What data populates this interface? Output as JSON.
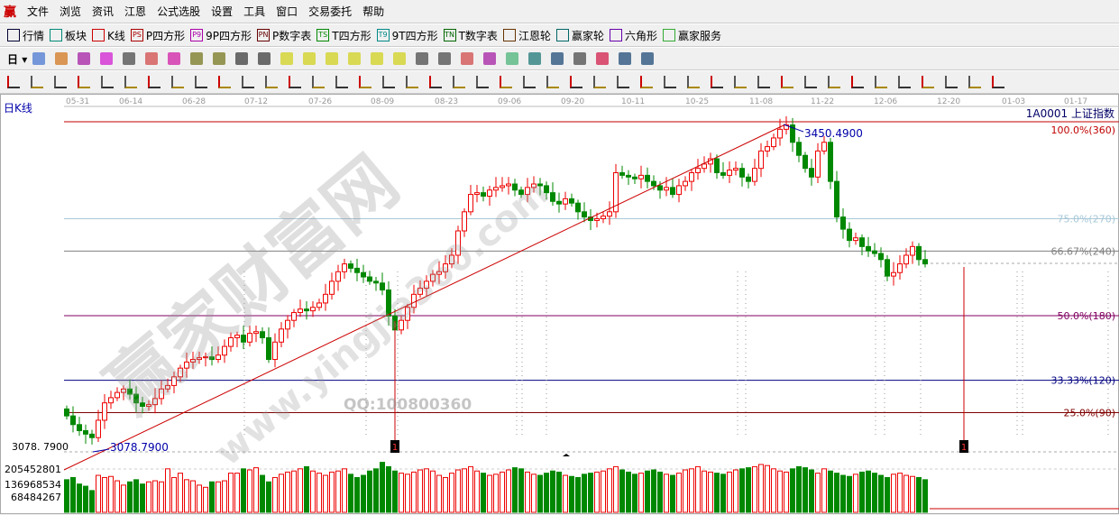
{
  "menu": {
    "logo": "赢",
    "items": [
      "文件",
      "浏览",
      "资讯",
      "江恩",
      "公式选股",
      "设置",
      "工具",
      "窗口",
      "交易委托",
      "帮助"
    ]
  },
  "toolbar1": [
    {
      "icon": "grid-icon",
      "label": "行情",
      "c": "#003"
    },
    {
      "icon": "blocks-icon",
      "label": "板块",
      "c": "#087"
    },
    {
      "icon": "kline-icon",
      "label": "K线",
      "c": "#c00"
    },
    {
      "icon": "ps-icon",
      "badge": "PS",
      "label": "P四方形",
      "c": "#a00"
    },
    {
      "icon": "p9-icon",
      "badge": "P9",
      "label": "9P四方形",
      "c": "#a0a"
    },
    {
      "icon": "pn-icon",
      "badge": "PN",
      "label": "P数字表",
      "c": "#600"
    },
    {
      "icon": "ts-icon",
      "badge": "TS",
      "label": "T四方形",
      "c": "#080"
    },
    {
      "icon": "t9-icon",
      "badge": "T9",
      "label": "9T四方形",
      "c": "#088"
    },
    {
      "icon": "tn-icon",
      "badge": "TN",
      "label": "T数字表",
      "c": "#060"
    },
    {
      "icon": "gann-wheel-icon",
      "label": "江恩轮",
      "c": "#630"
    },
    {
      "icon": "winner-wheel-icon",
      "label": "赢家轮",
      "c": "#066"
    },
    {
      "icon": "hexagon-icon",
      "label": "六角形",
      "c": "#60a"
    },
    {
      "icon": "dollar-icon",
      "label": "赢家服务",
      "c": "#3a3"
    }
  ],
  "toolbar2": {
    "period": "日",
    "icons": [
      "chart-type-icon",
      "note-icon",
      "indicator-3-icon",
      "indicator-9-icon",
      "candle-icon",
      "pattern-icon",
      "flag-icon",
      "first-icon",
      "last-icon",
      "left-icon",
      "right-icon",
      "zoom-in-icon",
      "zoom-out-icon",
      "zoom-h-icon",
      "zoom-all-icon",
      "zoom-v-icon",
      "zoom-both-icon",
      "hand-icon",
      "crosshair-icon",
      "peak-icon",
      "section-icon",
      "signal-icon",
      "calendar-icon",
      "calculator-icon",
      "report-icon",
      "save-icon",
      "network-icon",
      "print-icon"
    ]
  },
  "toolbar3": {
    "icons": [
      "pen-icon",
      "parallel-icon",
      "gold1-icon",
      "gold2-icon",
      "fib-icon",
      "spiral-icon",
      "pen2-icon",
      "circle-icon",
      "lines-icon",
      "n2-icon",
      "triangle-icon",
      "target-icon",
      "star-icon",
      "box-icon",
      "slash-icon",
      "shen-icon",
      "ying-icon",
      "grid2-icon",
      "width-icon",
      "frame-icon",
      "fan-icon",
      "cube-icon",
      "web-icon",
      "angle-icon",
      "zigzag-icon",
      "grid3-icon",
      "grid4-icon",
      "hatch-icon",
      "bars-icon",
      "pct-icon",
      "percent-icon",
      "pct-line-icon",
      "gold-circle-icon",
      "gold-line-icon",
      "pencil-icon",
      "wave-icon",
      "gold-icon",
      "j-angle-icon",
      "f-angle-icon",
      "gold-angle-icon",
      "shen-angle-icon",
      "ying-angle-icon",
      "four-angle-icon"
    ]
  },
  "chart": {
    "period_label": "日K线",
    "symbol": "1A0001 上证指数",
    "high_label": "3450.4900",
    "low_label": "3078.7900",
    "axis_low": "3078. 7900",
    "dates": [
      "05-31",
      "06-14",
      "06-28",
      "07-12",
      "07-26",
      "08-09",
      "08-23",
      "09-06",
      "09-20",
      "10-11",
      "10-25",
      "11-08",
      "11-22",
      "12-06",
      "12-20",
      "01-03",
      "01-17"
    ],
    "levels": [
      {
        "frac": 1.0,
        "label": "100.0%(360)",
        "color": "#c00000"
      },
      {
        "frac": 0.75,
        "label": "75.0%(270)",
        "color": "#a8c8d8"
      },
      {
        "frac": 0.6667,
        "label": "66.67%(240)",
        "color": "#808080"
      },
      {
        "frac": 0.5,
        "label": "50.0%(180)",
        "color": "#800060"
      },
      {
        "frac": 0.3333,
        "label": "33.33%(120)",
        "color": "#000080"
      },
      {
        "frac": 0.25,
        "label": "25.0%(90)",
        "color": "#800000"
      }
    ],
    "volume_ticks": [
      "205452801",
      "136968534",
      "68484267"
    ],
    "markers": [
      "1",
      "1"
    ],
    "watermark": "赢家财富网",
    "watermark_url": "www.yingjia360.com",
    "qq": "QQ:100800360"
  },
  "chart_data": {
    "type": "candlestick",
    "ylim": [
      3078.79,
      3450.49
    ],
    "close": [
      3115,
      3105,
      3098,
      3094,
      3090,
      3110,
      3130,
      3136,
      3142,
      3146,
      3140,
      3130,
      3126,
      3128,
      3135,
      3146,
      3150,
      3160,
      3170,
      3177,
      3180,
      3182,
      3183,
      3180,
      3185,
      3195,
      3205,
      3208,
      3200,
      3210,
      3212,
      3205,
      3180,
      3200,
      3215,
      3225,
      3234,
      3238,
      3236,
      3240,
      3245,
      3255,
      3270,
      3281,
      3290,
      3285,
      3280,
      3275,
      3270,
      3268,
      3260,
      3230,
      3214,
      3225,
      3240,
      3255,
      3262,
      3270,
      3278,
      3281,
      3290,
      3300,
      3328,
      3350,
      3370,
      3372,
      3368,
      3375,
      3378,
      3380,
      3382,
      3375,
      3370,
      3378,
      3382,
      3380,
      3372,
      3362,
      3359,
      3365,
      3360,
      3350,
      3344,
      3340,
      3342,
      3345,
      3350,
      3395,
      3392,
      3390,
      3388,
      3392,
      3385,
      3380,
      3375,
      3378,
      3370,
      3380,
      3385,
      3395,
      3400,
      3405,
      3411,
      3395,
      3392,
      3398,
      3400,
      3390,
      3385,
      3400,
      3420,
      3425,
      3435,
      3445,
      3450,
      3430,
      3415,
      3400,
      3390,
      3420,
      3430,
      3385,
      3344,
      3330,
      3317,
      3320,
      3310,
      3305,
      3302,
      3295,
      3276,
      3280,
      3290,
      3300,
      3310,
      3295,
      3290
    ],
    "volume_millions": [
      150,
      160,
      130,
      120,
      100,
      170,
      160,
      165,
      145,
      125,
      140,
      150,
      130,
      140,
      145,
      140,
      200,
      160,
      180,
      150,
      145,
      125,
      115,
      140,
      140,
      145,
      180,
      180,
      200,
      195,
      205,
      170,
      140,
      160,
      175,
      185,
      190,
      200,
      210,
      190,
      180,
      170,
      185,
      190,
      200,
      175,
      160,
      170,
      190,
      200,
      230,
      210,
      190,
      180,
      175,
      185,
      195,
      200,
      190,
      170,
      160,
      180,
      195,
      200,
      210,
      190,
      180,
      170,
      175,
      185,
      195,
      205,
      200,
      185,
      175,
      170,
      180,
      190,
      185,
      170,
      165,
      160,
      175,
      180,
      185,
      190,
      200,
      210,
      195,
      185,
      175,
      180,
      190,
      195,
      185,
      175,
      170,
      180,
      195,
      200,
      210,
      190,
      185,
      180,
      175,
      185,
      195,
      200,
      205,
      210,
      220,
      215,
      200,
      190,
      185,
      200,
      210,
      205,
      195,
      180,
      200,
      190,
      180,
      170,
      165,
      175,
      185,
      190,
      180,
      170,
      160,
      175,
      180,
      170,
      165,
      160,
      150
    ]
  }
}
